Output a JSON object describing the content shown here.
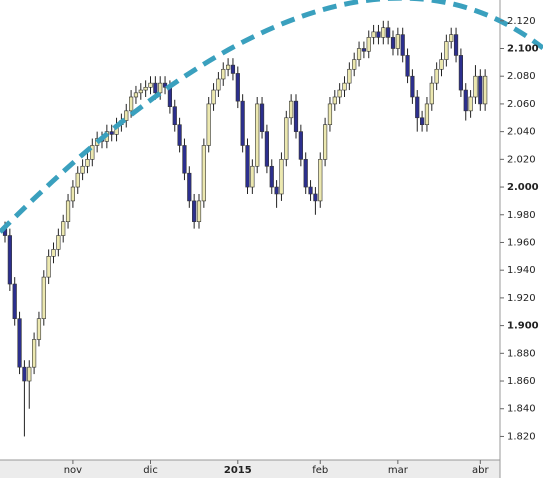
{
  "chart_data": {
    "type": "candlestick",
    "categories": [
      null,
      null,
      null,
      null,
      null,
      null,
      null,
      null,
      null,
      null,
      null,
      null,
      null,
      null,
      "nov",
      null,
      null,
      null,
      null,
      null,
      null,
      null,
      null,
      null,
      null,
      null,
      null,
      null,
      null,
      null,
      "dic",
      null,
      null,
      null,
      null,
      null,
      null,
      null,
      null,
      null,
      null,
      null,
      null,
      null,
      null,
      null,
      null,
      null,
      "2015",
      null,
      null,
      null,
      null,
      null,
      null,
      null,
      null,
      null,
      null,
      null,
      null,
      null,
      null,
      null,
      null,
      "feb",
      null,
      null,
      null,
      null,
      null,
      null,
      null,
      null,
      null,
      null,
      null,
      null,
      null,
      null,
      null,
      "mar",
      null,
      null,
      null,
      null,
      null,
      null,
      null,
      null,
      null,
      null,
      null,
      null,
      null,
      null,
      null,
      null,
      "abr",
      null
    ],
    "open": [
      1.97,
      1.965,
      1.93,
      1.905,
      1.87,
      1.86,
      1.87,
      1.89,
      1.905,
      1.935,
      1.95,
      1.955,
      1.965,
      1.975,
      1.99,
      2.0,
      2.01,
      2.015,
      2.02,
      2.03,
      2.035,
      2.033,
      2.04,
      2.038,
      2.045,
      2.048,
      2.055,
      2.065,
      2.068,
      2.07,
      2.072,
      2.075,
      2.068,
      2.075,
      2.072,
      2.058,
      2.045,
      2.03,
      2.01,
      1.99,
      1.975,
      1.99,
      2.03,
      2.06,
      2.07,
      2.078,
      2.085,
      2.088,
      2.082,
      2.062,
      2.03,
      2.0,
      2.015,
      2.06,
      2.04,
      2.015,
      2.0,
      1.995,
      2.02,
      2.05,
      2.062,
      2.04,
      2.02,
      2.0,
      1.995,
      1.99,
      2.02,
      2.045,
      2.06,
      2.065,
      2.07,
      2.075,
      2.085,
      2.092,
      2.1,
      2.098,
      2.108,
      2.112,
      2.108,
      2.115,
      2.108,
      2.1,
      2.11,
      2.095,
      2.08,
      2.065,
      2.05,
      2.045,
      2.06,
      2.075,
      2.085,
      2.092,
      2.105,
      2.11,
      2.095,
      2.07,
      2.055,
      2.065,
      2.08,
      2.06
    ],
    "high": [
      1.975,
      1.97,
      1.935,
      1.91,
      1.875,
      1.875,
      1.895,
      1.91,
      1.94,
      1.955,
      1.96,
      1.97,
      1.98,
      1.995,
      2.005,
      2.015,
      2.02,
      2.025,
      2.035,
      2.04,
      2.04,
      2.045,
      2.045,
      2.05,
      2.053,
      2.06,
      2.07,
      2.073,
      2.075,
      2.077,
      2.08,
      2.08,
      2.08,
      2.08,
      2.077,
      2.063,
      2.05,
      2.035,
      2.015,
      1.995,
      1.995,
      2.035,
      2.065,
      2.075,
      2.083,
      2.09,
      2.093,
      2.093,
      2.087,
      2.067,
      2.035,
      2.02,
      2.065,
      2.065,
      2.045,
      2.02,
      2.005,
      2.025,
      2.055,
      2.067,
      2.067,
      2.045,
      2.025,
      2.005,
      2.0,
      2.025,
      2.05,
      2.065,
      2.07,
      2.075,
      2.08,
      2.09,
      2.097,
      2.105,
      2.105,
      2.113,
      2.117,
      2.117,
      2.12,
      2.12,
      2.113,
      2.115,
      2.115,
      2.1,
      2.085,
      2.07,
      2.055,
      2.065,
      2.08,
      2.09,
      2.097,
      2.11,
      2.115,
      2.115,
      2.1,
      2.075,
      2.07,
      2.088,
      2.085,
      2.085
    ],
    "low": [
      1.96,
      1.925,
      1.9,
      1.865,
      1.82,
      1.84,
      1.865,
      1.885,
      1.9,
      1.93,
      1.945,
      1.95,
      1.96,
      1.97,
      1.985,
      1.995,
      2.005,
      2.01,
      2.015,
      2.025,
      2.028,
      2.028,
      2.033,
      2.033,
      2.04,
      2.043,
      2.05,
      2.06,
      2.063,
      2.065,
      2.067,
      2.063,
      2.063,
      2.067,
      2.053,
      2.04,
      2.025,
      2.005,
      1.985,
      1.97,
      1.97,
      1.985,
      2.025,
      2.055,
      2.065,
      2.073,
      2.08,
      2.077,
      2.057,
      2.025,
      1.995,
      1.995,
      2.01,
      2.035,
      2.01,
      1.995,
      1.985,
      1.99,
      2.015,
      2.045,
      2.035,
      2.015,
      1.995,
      1.99,
      1.98,
      1.985,
      2.015,
      2.04,
      2.055,
      2.06,
      2.065,
      2.07,
      2.08,
      2.087,
      2.093,
      2.093,
      2.103,
      2.103,
      2.103,
      2.103,
      2.095,
      2.095,
      2.09,
      2.075,
      2.06,
      2.04,
      2.04,
      2.04,
      2.055,
      2.07,
      2.08,
      2.087,
      2.1,
      2.09,
      2.065,
      2.048,
      2.05,
      2.06,
      2.055,
      2.055
    ],
    "close": [
      1.965,
      1.93,
      1.905,
      1.87,
      1.86,
      1.87,
      1.89,
      1.905,
      1.935,
      1.95,
      1.955,
      1.965,
      1.975,
      1.99,
      2.0,
      2.01,
      2.015,
      2.02,
      2.03,
      2.035,
      2.033,
      2.04,
      2.038,
      2.045,
      2.048,
      2.055,
      2.065,
      2.068,
      2.07,
      2.072,
      2.075,
      2.068,
      2.075,
      2.072,
      2.058,
      2.045,
      2.03,
      2.01,
      1.99,
      1.975,
      1.99,
      2.03,
      2.06,
      2.07,
      2.078,
      2.085,
      2.088,
      2.082,
      2.062,
      2.03,
      2.0,
      2.015,
      2.06,
      2.04,
      2.015,
      2.0,
      1.995,
      2.02,
      2.05,
      2.062,
      2.04,
      2.02,
      2.0,
      1.995,
      1.99,
      2.02,
      2.045,
      2.06,
      2.065,
      2.07,
      2.075,
      2.085,
      2.092,
      2.1,
      2.098,
      2.108,
      2.112,
      2.108,
      2.115,
      2.108,
      2.1,
      2.11,
      2.095,
      2.08,
      2.065,
      2.05,
      2.045,
      2.06,
      2.075,
      2.085,
      2.092,
      2.105,
      2.11,
      2.095,
      2.07,
      2.055,
      2.065,
      2.08,
      2.06,
      2.08
    ],
    "up_color": "#ece8b0",
    "down_color": "#2c2f8e",
    "ylim": [
      1.803,
      2.135
    ],
    "yticks": [
      {
        "value": 1.82,
        "label": "1.820"
      },
      {
        "value": 1.84,
        "label": "1.840"
      },
      {
        "value": 1.86,
        "label": "1.860"
      },
      {
        "value": 1.88,
        "label": "1.880"
      },
      {
        "value": 1.9,
        "label": "1.900"
      },
      {
        "value": 1.92,
        "label": "1.920"
      },
      {
        "value": 1.94,
        "label": "1.940"
      },
      {
        "value": 1.96,
        "label": "1.960"
      },
      {
        "value": 1.98,
        "label": "1.980"
      },
      {
        "value": 2.0,
        "label": "2.000"
      },
      {
        "value": 2.02,
        "label": "2.020"
      },
      {
        "value": 2.04,
        "label": "2.040"
      },
      {
        "value": 2.06,
        "label": "2.060"
      },
      {
        "value": 2.08,
        "label": "2.080"
      },
      {
        "value": 2.1,
        "label": "2.100"
      },
      {
        "value": 2.12,
        "label": "2.120"
      }
    ],
    "grid": false
  }
}
